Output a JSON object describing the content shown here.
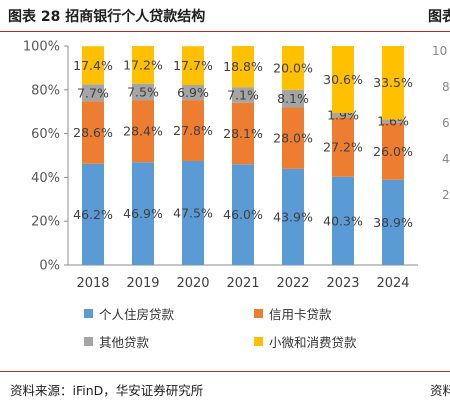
{
  "header": {
    "title": "图表 28  招商银行个人贷款结构",
    "next_title_fragment": "图表"
  },
  "source": {
    "text": "资料来源：iFinD，华安证券研究所",
    "right_fragment": "资料"
  },
  "neighbor_axis_ticks": [
    "10",
    "8",
    "6",
    "4",
    "2"
  ],
  "chart_data": {
    "type": "bar",
    "stacked": true,
    "categories": [
      "2018",
      "2019",
      "2020",
      "2021",
      "2022",
      "2023",
      "2024"
    ],
    "series": [
      {
        "name": "个人住房贷款",
        "color": "#5b9bd5",
        "values": [
          46.2,
          46.9,
          47.5,
          46.0,
          43.9,
          40.3,
          38.9
        ]
      },
      {
        "name": "信用卡贷款",
        "color": "#ed7d31",
        "values": [
          28.6,
          28.4,
          27.8,
          28.1,
          28.0,
          27.2,
          26.0
        ]
      },
      {
        "name": "其他贷款",
        "color": "#a5a5a5",
        "values": [
          7.7,
          7.5,
          6.9,
          7.1,
          8.1,
          1.9,
          1.6
        ]
      },
      {
        "name": "小微和消费贷款",
        "color": "#ffc000",
        "values": [
          17.4,
          17.2,
          17.7,
          18.8,
          20.0,
          30.6,
          33.5
        ]
      }
    ],
    "yticks": [
      "0%",
      "20%",
      "40%",
      "60%",
      "80%",
      "100%"
    ],
    "ylim": [
      0,
      100
    ],
    "grid": false,
    "legend_position": "bottom",
    "xlabel": "",
    "ylabel": ""
  }
}
